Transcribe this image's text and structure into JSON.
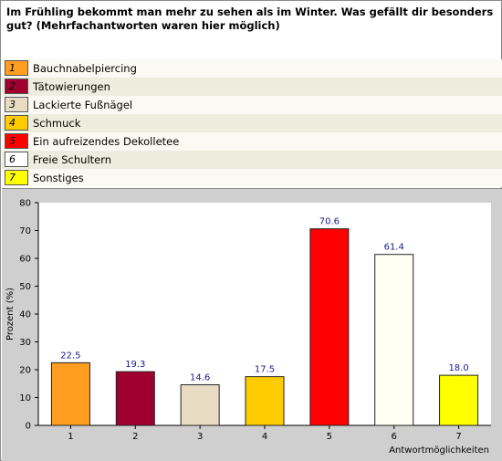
{
  "question": "Im Frühling bekommt man mehr zu sehen als im Winter. Was gefällt dir besonders gut? (Mehrfachantworten waren hier möglich)",
  "legend": [
    {
      "num": "1",
      "label": "Bauchnabelpiercing",
      "color": "#ff9e20"
    },
    {
      "num": "2",
      "label": "Tätowierungen",
      "color": "#a00030"
    },
    {
      "num": "3",
      "label": "Lackierte Fußnägel",
      "color": "#e8dcc4"
    },
    {
      "num": "4",
      "label": "Schmuck",
      "color": "#ffcc00"
    },
    {
      "num": "5",
      "label": "Ein aufreizendes Dekolletee",
      "color": "#ff0000"
    },
    {
      "num": "6",
      "label": "Freie Schultern",
      "color": "#ffffff"
    },
    {
      "num": "7",
      "label": "Sonstiges",
      "color": "#ffff00"
    }
  ],
  "chart_data": {
    "type": "bar",
    "categories": [
      "1",
      "2",
      "3",
      "4",
      "5",
      "6",
      "7"
    ],
    "values": [
      22.5,
      19.3,
      14.6,
      17.5,
      70.6,
      61.4,
      18.0
    ],
    "value_labels": [
      "22.5",
      "19.3",
      "14.6",
      "17.5",
      "70.6",
      "61.4",
      "18.0"
    ],
    "colors": [
      "#ff9e20",
      "#a00030",
      "#e8dcc4",
      "#ffcc00",
      "#ff0000",
      "#fffff4",
      "#ffff00"
    ],
    "ylabel": "Prozent (%)",
    "xlabel": "Antwortmöglichkeiten",
    "ylim": [
      0,
      80
    ],
    "yticks": [
      "0",
      "10",
      "20",
      "30",
      "40",
      "50",
      "60",
      "70",
      "80"
    ],
    "grid": false
  }
}
